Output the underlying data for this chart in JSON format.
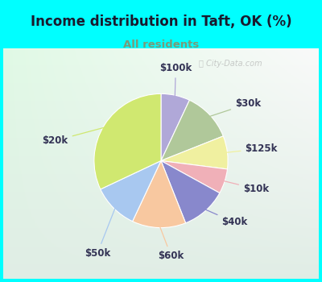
{
  "title": "Income distribution in Taft, OK (%)",
  "subtitle": "All residents",
  "title_color": "#1a1a2e",
  "subtitle_color": "#7a9a7a",
  "background_color": "#00ffff",
  "watermark": "City-Data.com",
  "labels": [
    "$100k",
    "$30k",
    "$125k",
    "$10k",
    "$40k",
    "$60k",
    "$50k",
    "$20k"
  ],
  "sizes": [
    7,
    12,
    8,
    6,
    11,
    13,
    11,
    32
  ],
  "colors": [
    "#b0a8d8",
    "#b0c89a",
    "#f0f0a0",
    "#f0b0b8",
    "#8888cc",
    "#f8c8a0",
    "#a8c8f0",
    "#d0e870"
  ],
  "startangle": 90,
  "label_fontsize": 8.5,
  "label_color": "#333355"
}
